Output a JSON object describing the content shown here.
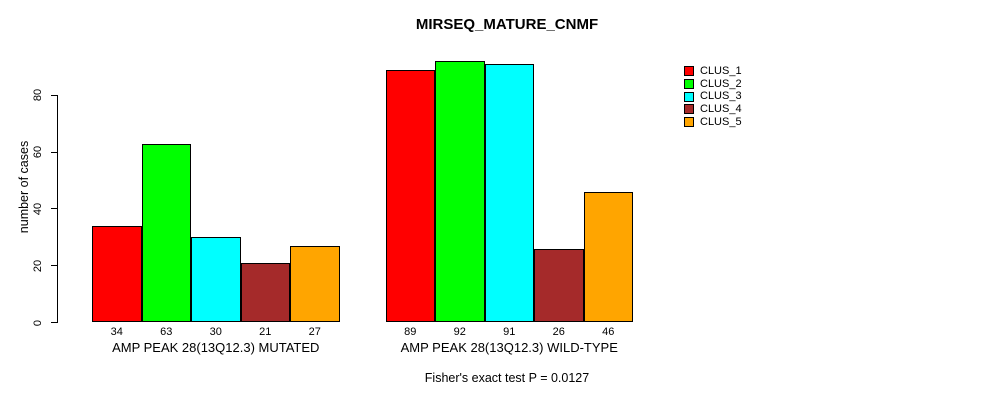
{
  "chart_data": {
    "type": "bar",
    "title": "MIRSEQ_MATURE_CNMF",
    "ylabel": "number of cases",
    "xlabel": "",
    "annotation": "Fisher's exact test P = 0.0127",
    "yticks": [
      0,
      20,
      40,
      60,
      80
    ],
    "ylim": [
      0,
      93
    ],
    "grid": false,
    "legend_position": "right",
    "bar_value_labels": true,
    "categories": [
      "AMP PEAK 28(13Q12.3) MUTATED",
      "AMP PEAK 28(13Q12.3) WILD-TYPE"
    ],
    "series": [
      {
        "name": "CLUS_1",
        "color": "#FF0000",
        "values": [
          34,
          89
        ]
      },
      {
        "name": "CLUS_2",
        "color": "#00FF00",
        "values": [
          63,
          92
        ]
      },
      {
        "name": "CLUS_3",
        "color": "#00FFFF",
        "values": [
          30,
          91
        ]
      },
      {
        "name": "CLUS_4",
        "color": "#A52A2A",
        "values": [
          21,
          26
        ]
      },
      {
        "name": "CLUS_5",
        "color": "#FFA500",
        "values": [
          27,
          46
        ]
      }
    ]
  }
}
